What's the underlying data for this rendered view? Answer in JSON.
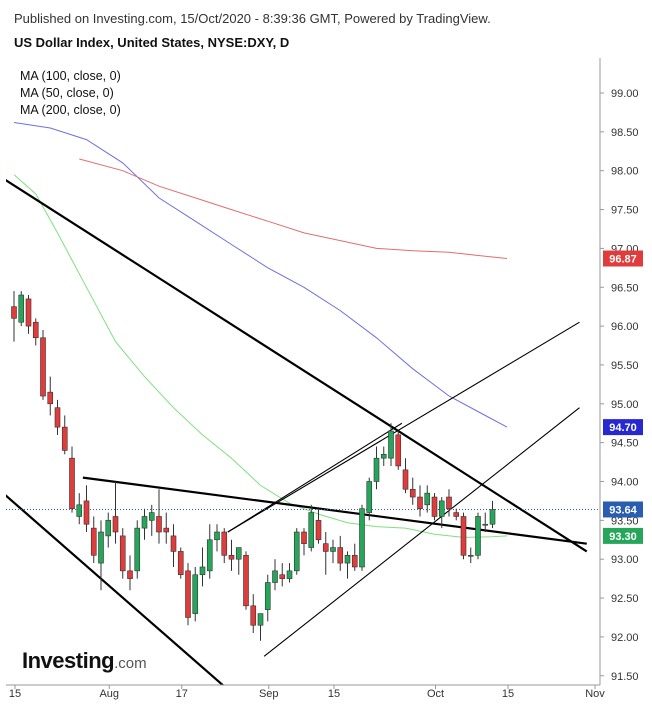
{
  "header": {
    "published": "Published on Investing.com, 15/Oct/2020 - 8:39:36 GMT, Powered by TradingView.",
    "title": "US Dollar Index, United States, NYSE:DXY, D"
  },
  "legend": [
    "MA (100, close, 0)",
    "MA (50, close, 0)",
    "MA (200, close, 0)"
  ],
  "logo": {
    "main": "Investing",
    "suffix": ".com"
  },
  "colors": {
    "up": "#26a65b",
    "down": "#e03c3c",
    "ma50": "#7fe07f",
    "ma100": "#6f6fe0",
    "ma200": "#e06f6f",
    "trend": "#000000",
    "current": "#2a5db0"
  },
  "chart_data": {
    "type": "candlestick",
    "ylim": [
      91.35,
      99.5
    ],
    "y_ticks": [
      "99.00",
      "98.50",
      "98.00",
      "97.50",
      "97.00",
      "96.50",
      "96.00",
      "95.50",
      "95.00",
      "94.50",
      "94.00",
      "93.50",
      "93.00",
      "92.50",
      "92.00",
      "91.50"
    ],
    "x_ticks": [
      "15",
      "Aug",
      "17",
      "Sep",
      "15",
      "Oct",
      "15",
      "Nov"
    ],
    "price_tags": [
      {
        "label": "96.87",
        "value": 96.87,
        "color": "#e03c3c"
      },
      {
        "label": "94.70",
        "value": 94.7,
        "color": "#2828d0"
      },
      {
        "label": "93.64",
        "value": 93.64,
        "color": "#2a5db0"
      },
      {
        "label": "93.30",
        "value": 93.3,
        "color": "#26a65b"
      }
    ],
    "current_price": 93.64,
    "candles": [
      {
        "date": "2020-07-15",
        "o": 96.25,
        "h": 96.45,
        "l": 95.8,
        "c": 96.1
      },
      {
        "date": "2020-07-16",
        "o": 96.05,
        "h": 96.45,
        "l": 96.0,
        "c": 96.4
      },
      {
        "date": "2020-07-17",
        "o": 96.35,
        "h": 96.4,
        "l": 95.9,
        "c": 96.0
      },
      {
        "date": "2020-07-20",
        "o": 96.05,
        "h": 96.1,
        "l": 95.75,
        "c": 95.85
      },
      {
        "date": "2020-07-21",
        "o": 95.85,
        "h": 95.95,
        "l": 95.05,
        "c": 95.1
      },
      {
        "date": "2020-07-22",
        "o": 95.15,
        "h": 95.35,
        "l": 94.85,
        "c": 95.0
      },
      {
        "date": "2020-07-23",
        "o": 94.95,
        "h": 95.05,
        "l": 94.6,
        "c": 94.7
      },
      {
        "date": "2020-07-24",
        "o": 94.7,
        "h": 94.85,
        "l": 94.35,
        "c": 94.4
      },
      {
        "date": "2020-07-27",
        "o": 94.3,
        "h": 94.45,
        "l": 93.6,
        "c": 93.65
      },
      {
        "date": "2020-07-28",
        "o": 93.55,
        "h": 93.85,
        "l": 93.45,
        "c": 93.7
      },
      {
        "date": "2020-07-29",
        "o": 93.75,
        "h": 93.95,
        "l": 93.35,
        "c": 93.45
      },
      {
        "date": "2020-07-30",
        "o": 93.4,
        "h": 93.55,
        "l": 92.95,
        "c": 93.05
      },
      {
        "date": "2020-07-31",
        "o": 92.95,
        "h": 93.5,
        "l": 92.6,
        "c": 93.35
      },
      {
        "date": "2020-08-03",
        "o": 93.3,
        "h": 93.6,
        "l": 93.15,
        "c": 93.5
      },
      {
        "date": "2020-08-04",
        "o": 93.55,
        "h": 94.0,
        "l": 93.2,
        "c": 93.35
      },
      {
        "date": "2020-08-05",
        "o": 93.3,
        "h": 93.4,
        "l": 92.75,
        "c": 92.85
      },
      {
        "date": "2020-08-06",
        "o": 92.85,
        "h": 93.05,
        "l": 92.6,
        "c": 92.75
      },
      {
        "date": "2020-08-07",
        "o": 92.85,
        "h": 93.5,
        "l": 92.75,
        "c": 93.4
      },
      {
        "date": "2020-08-10",
        "o": 93.4,
        "h": 93.65,
        "l": 93.25,
        "c": 93.55
      },
      {
        "date": "2020-08-11",
        "o": 93.5,
        "h": 93.7,
        "l": 93.3,
        "c": 93.6
      },
      {
        "date": "2020-08-12",
        "o": 93.55,
        "h": 93.9,
        "l": 93.2,
        "c": 93.35
      },
      {
        "date": "2020-08-13",
        "o": 93.4,
        "h": 93.6,
        "l": 93.2,
        "c": 93.35
      },
      {
        "date": "2020-08-14",
        "o": 93.3,
        "h": 93.45,
        "l": 92.9,
        "c": 93.1
      },
      {
        "date": "2020-08-17",
        "o": 93.1,
        "h": 93.15,
        "l": 92.75,
        "c": 92.8
      },
      {
        "date": "2020-08-18",
        "o": 92.85,
        "h": 92.95,
        "l": 92.15,
        "c": 92.25
      },
      {
        "date": "2020-08-19",
        "o": 92.3,
        "h": 92.9,
        "l": 92.2,
        "c": 92.8
      },
      {
        "date": "2020-08-20",
        "o": 92.8,
        "h": 93.15,
        "l": 92.65,
        "c": 92.9
      },
      {
        "date": "2020-08-21",
        "o": 92.85,
        "h": 93.45,
        "l": 92.75,
        "c": 93.25
      },
      {
        "date": "2020-08-24",
        "o": 93.25,
        "h": 93.45,
        "l": 93.1,
        "c": 93.35
      },
      {
        "date": "2020-08-25",
        "o": 93.35,
        "h": 93.4,
        "l": 92.95,
        "c": 93.05
      },
      {
        "date": "2020-08-26",
        "o": 93.05,
        "h": 93.25,
        "l": 92.85,
        "c": 93.0
      },
      {
        "date": "2020-08-27",
        "o": 93.0,
        "h": 93.1,
        "l": 92.8,
        "c": 93.15
      },
      {
        "date": "2020-08-28",
        "o": 93.05,
        "h": 93.1,
        "l": 92.35,
        "c": 92.4
      },
      {
        "date": "2020-08-31",
        "o": 92.4,
        "h": 92.55,
        "l": 92.05,
        "c": 92.15
      },
      {
        "date": "2020-09-01",
        "o": 92.15,
        "h": 92.3,
        "l": 91.95,
        "c": 92.3
      },
      {
        "date": "2020-09-02",
        "o": 92.35,
        "h": 92.8,
        "l": 92.2,
        "c": 92.7
      },
      {
        "date": "2020-09-03",
        "o": 92.7,
        "h": 93.0,
        "l": 92.6,
        "c": 92.85
      },
      {
        "date": "2020-09-04",
        "o": 92.8,
        "h": 92.95,
        "l": 92.65,
        "c": 92.75
      },
      {
        "date": "2020-09-07",
        "o": 92.75,
        "h": 92.95,
        "l": 92.7,
        "c": 92.85
      },
      {
        "date": "2020-09-08",
        "o": 92.85,
        "h": 93.4,
        "l": 92.8,
        "c": 93.35
      },
      {
        "date": "2020-09-09",
        "o": 93.35,
        "h": 93.4,
        "l": 93.05,
        "c": 93.2
      },
      {
        "date": "2020-09-10",
        "o": 93.15,
        "h": 93.7,
        "l": 93.1,
        "c": 93.6
      },
      {
        "date": "2020-09-11",
        "o": 93.5,
        "h": 93.65,
        "l": 93.2,
        "c": 93.25
      },
      {
        "date": "2020-09-14",
        "o": 93.2,
        "h": 93.35,
        "l": 92.8,
        "c": 93.1
      },
      {
        "date": "2020-09-15",
        "o": 93.1,
        "h": 93.25,
        "l": 92.95,
        "c": 93.15
      },
      {
        "date": "2020-09-16",
        "o": 93.15,
        "h": 93.3,
        "l": 92.85,
        "c": 92.95
      },
      {
        "date": "2020-09-17",
        "o": 92.95,
        "h": 93.1,
        "l": 92.75,
        "c": 93.05
      },
      {
        "date": "2020-09-18",
        "o": 93.05,
        "h": 93.2,
        "l": 92.85,
        "c": 92.9
      },
      {
        "date": "2020-09-21",
        "o": 92.9,
        "h": 93.7,
        "l": 92.85,
        "c": 93.65
      },
      {
        "date": "2020-09-22",
        "o": 93.6,
        "h": 94.05,
        "l": 93.5,
        "c": 94.0
      },
      {
        "date": "2020-09-23",
        "o": 94.0,
        "h": 94.45,
        "l": 93.9,
        "c": 94.3
      },
      {
        "date": "2020-09-24",
        "o": 94.3,
        "h": 94.45,
        "l": 94.2,
        "c": 94.35
      },
      {
        "date": "2020-09-25",
        "o": 94.3,
        "h": 94.75,
        "l": 94.2,
        "c": 94.65
      },
      {
        "date": "2020-09-28",
        "o": 94.6,
        "h": 94.65,
        "l": 94.15,
        "c": 94.2
      },
      {
        "date": "2020-09-29",
        "o": 94.15,
        "h": 94.3,
        "l": 93.85,
        "c": 93.9
      },
      {
        "date": "2020-09-30",
        "o": 93.9,
        "h": 94.05,
        "l": 93.7,
        "c": 93.8
      },
      {
        "date": "2020-10-01",
        "o": 93.8,
        "h": 93.95,
        "l": 93.55,
        "c": 93.65
      },
      {
        "date": "2020-10-02",
        "o": 93.7,
        "h": 93.95,
        "l": 93.6,
        "c": 93.85
      },
      {
        "date": "2020-10-05",
        "o": 93.8,
        "h": 93.85,
        "l": 93.5,
        "c": 93.55
      },
      {
        "date": "2020-10-06",
        "o": 93.55,
        "h": 93.8,
        "l": 93.4,
        "c": 93.75
      },
      {
        "date": "2020-10-07",
        "o": 93.8,
        "h": 93.9,
        "l": 93.55,
        "c": 93.65
      },
      {
        "date": "2020-10-08",
        "o": 93.6,
        "h": 93.65,
        "l": 93.5,
        "c": 93.55
      },
      {
        "date": "2020-10-09",
        "o": 93.55,
        "h": 93.6,
        "l": 93.0,
        "c": 93.05
      },
      {
        "date": "2020-10-12",
        "o": 93.05,
        "h": 93.15,
        "l": 92.95,
        "c": 93.05
      },
      {
        "date": "2020-10-13",
        "o": 93.05,
        "h": 93.6,
        "l": 93.0,
        "c": 93.55
      },
      {
        "date": "2020-10-14",
        "o": 93.45,
        "h": 93.6,
        "l": 93.35,
        "c": 93.45
      },
      {
        "date": "2020-10-15",
        "o": 93.45,
        "h": 93.75,
        "l": 93.4,
        "c": 93.64
      }
    ],
    "moving_averages": [
      {
        "name": "MA (100, close, 0)",
        "color": "#6f6fe0",
        "points": [
          [
            0,
            98.62
          ],
          [
            5,
            98.55
          ],
          [
            10,
            98.4
          ],
          [
            15,
            98.1
          ],
          [
            20,
            97.65
          ],
          [
            25,
            97.35
          ],
          [
            30,
            97.05
          ],
          [
            35,
            96.75
          ],
          [
            40,
            96.5
          ],
          [
            45,
            96.2
          ],
          [
            50,
            95.85
          ],
          [
            55,
            95.45
          ],
          [
            60,
            95.1
          ],
          [
            65,
            94.85
          ],
          [
            68,
            94.7
          ]
        ]
      },
      {
        "name": "MA (50, close, 0)",
        "color": "#7fe07f",
        "points": [
          [
            0,
            97.95
          ],
          [
            3,
            97.7
          ],
          [
            6,
            97.2
          ],
          [
            10,
            96.5
          ],
          [
            14,
            95.8
          ],
          [
            18,
            95.35
          ],
          [
            22,
            94.95
          ],
          [
            26,
            94.6
          ],
          [
            30,
            94.3
          ],
          [
            34,
            93.95
          ],
          [
            38,
            93.72
          ],
          [
            42,
            93.58
          ],
          [
            46,
            93.47
          ],
          [
            50,
            93.42
          ],
          [
            54,
            93.4
          ],
          [
            58,
            93.32
          ],
          [
            62,
            93.28
          ],
          [
            66,
            93.29
          ],
          [
            68,
            93.3
          ]
        ]
      },
      {
        "name": "MA (200, close, 0)",
        "color": "#e06f6f",
        "points": [
          [
            9,
            98.15
          ],
          [
            15,
            98.0
          ],
          [
            20,
            97.8
          ],
          [
            25,
            97.65
          ],
          [
            30,
            97.5
          ],
          [
            35,
            97.35
          ],
          [
            40,
            97.2
          ],
          [
            45,
            97.1
          ],
          [
            50,
            97.0
          ],
          [
            55,
            96.97
          ],
          [
            60,
            96.95
          ],
          [
            65,
            96.9
          ],
          [
            68,
            96.87
          ]
        ]
      }
    ],
    "trendlines": [
      {
        "x1": -1.5,
        "y1": 97.9,
        "x2": 79,
        "y2": 93.1,
        "width": 2.2
      },
      {
        "x1": 9.5,
        "y1": 94.05,
        "x2": 79,
        "y2": 93.2,
        "width": 2.2
      },
      {
        "x1": -1.5,
        "y1": 93.85,
        "x2": 31,
        "y2": 91.2,
        "width": 2.2
      },
      {
        "x1": 29.5,
        "y1": 93.35,
        "x2": 78,
        "y2": 96.05,
        "width": 1.1
      },
      {
        "x1": 29.5,
        "y1": 93.35,
        "x2": 53.5,
        "y2": 94.75,
        "width": 1.1
      },
      {
        "x1": 34.5,
        "y1": 91.75,
        "x2": 78,
        "y2": 94.95,
        "width": 1.1
      }
    ]
  }
}
